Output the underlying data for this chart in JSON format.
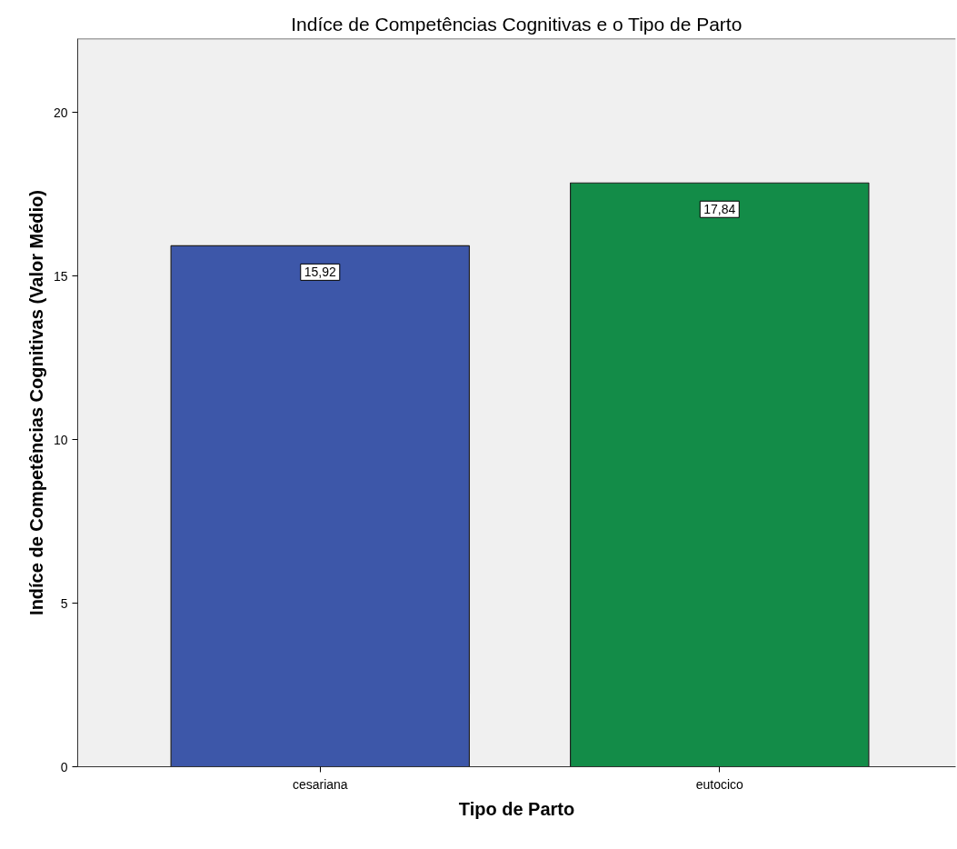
{
  "chart_data": {
    "type": "bar",
    "title": "Indíce de Competências Cognitivas e o Tipo de Parto",
    "xlabel": "Tipo de Parto",
    "ylabel": "Indíce de Competências Cognitivas (Valor Médio)",
    "categories": [
      "cesariana",
      "eutocico"
    ],
    "values": [
      15.92,
      17.84
    ],
    "colors": [
      "#3d57a9",
      "#138c48"
    ],
    "value_labels": [
      "15,92",
      "17,84"
    ],
    "ylim": [
      0,
      22.25
    ],
    "yticks": [
      0,
      5,
      10,
      15,
      20
    ],
    "grid": false
  }
}
